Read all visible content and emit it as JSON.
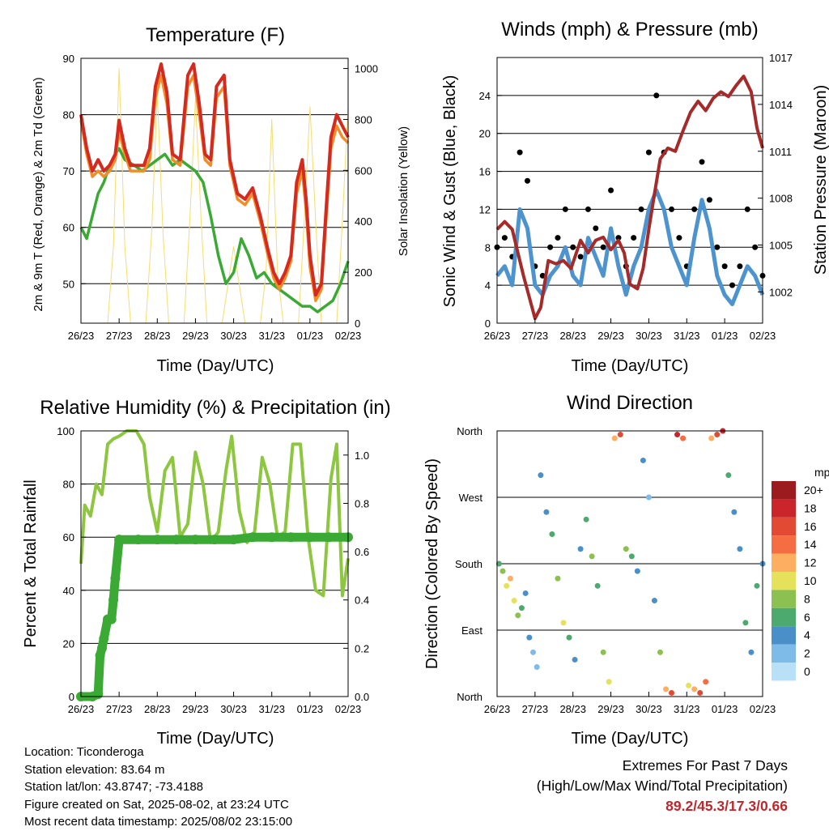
{
  "chart_data": [
    {
      "type": "line",
      "title": "Temperature (F)",
      "xlabel": "Time (Day/UTC)",
      "ylabel": "2m & 9m T (Red, Orange) & 2m Td (Green)",
      "y2label": "Solar Insolation (Yellow)",
      "xticks": [
        "26/23",
        "27/23",
        "28/23",
        "29/23",
        "30/23",
        "31/23",
        "01/23",
        "02/23"
      ],
      "ylim": [
        43,
        90
      ],
      "yticks": [
        50,
        60,
        70,
        80,
        90
      ],
      "y2lim": [
        0,
        1040
      ],
      "y2ticks": [
        0,
        200,
        400,
        600,
        800,
        1000
      ],
      "series": [
        {
          "name": "2m T",
          "color": "#d42a20",
          "x": [
            0,
            0.15,
            0.3,
            0.45,
            0.6,
            0.75,
            0.9,
            1.0,
            1.15,
            1.3,
            1.5,
            1.65,
            1.8,
            1.95,
            2.1,
            2.25,
            2.4,
            2.6,
            2.8,
            2.95,
            3.1,
            3.25,
            3.4,
            3.55,
            3.75,
            3.9,
            4.1,
            4.3,
            4.5,
            4.7,
            4.9,
            5.05,
            5.2,
            5.35,
            5.5,
            5.65,
            5.8,
            5.9,
            6.0,
            6.15,
            6.3,
            6.45,
            6.55,
            6.7,
            6.85,
            7.0
          ],
          "values": [
            80,
            74,
            70,
            72,
            70,
            71,
            73,
            79,
            74,
            71,
            71,
            71,
            74,
            85,
            89,
            84,
            73,
            72,
            87,
            89,
            82,
            73,
            72,
            85,
            87,
            72,
            66,
            65,
            67,
            62,
            56,
            52,
            50,
            52,
            55,
            68,
            72,
            65,
            55,
            48,
            50,
            66,
            76,
            80,
            78,
            76
          ]
        },
        {
          "name": "9m T",
          "color": "#f28c28",
          "x": [
            0,
            0.15,
            0.3,
            0.45,
            0.6,
            0.75,
            0.9,
            1.0,
            1.15,
            1.3,
            1.5,
            1.65,
            1.8,
            1.95,
            2.1,
            2.25,
            2.4,
            2.6,
            2.8,
            2.95,
            3.1,
            3.25,
            3.4,
            3.55,
            3.75,
            3.9,
            4.1,
            4.3,
            4.5,
            4.7,
            4.9,
            5.05,
            5.2,
            5.35,
            5.5,
            5.65,
            5.8,
            5.9,
            6.0,
            6.15,
            6.3,
            6.45,
            6.55,
            6.7,
            6.85,
            7.0
          ],
          "values": [
            79,
            73,
            69,
            70,
            69,
            70,
            72,
            77,
            73,
            70,
            70,
            70,
            72,
            83,
            87,
            82,
            72,
            71,
            85,
            87,
            80,
            72,
            71,
            83,
            85,
            71,
            65,
            64,
            66,
            61,
            55,
            51,
            49,
            51,
            54,
            66,
            70,
            63,
            53,
            47,
            49,
            64,
            74,
            78,
            76,
            75
          ]
        },
        {
          "name": "2m Td",
          "color": "#3aaa35",
          "x": [
            0,
            0.15,
            0.3,
            0.45,
            0.6,
            0.75,
            0.9,
            1.0,
            1.15,
            1.4,
            1.6,
            1.8,
            2.0,
            2.2,
            2.4,
            2.6,
            2.8,
            3.0,
            3.2,
            3.4,
            3.6,
            3.8,
            4.0,
            4.2,
            4.4,
            4.6,
            4.8,
            5.0,
            5.2,
            5.4,
            5.6,
            5.8,
            6.0,
            6.2,
            6.4,
            6.6,
            6.8,
            7.0
          ],
          "values": [
            60,
            58,
            62,
            66,
            68,
            71,
            73,
            74,
            72,
            71,
            70,
            71,
            72,
            73,
            71,
            72,
            71,
            70,
            68,
            62,
            55,
            50,
            52,
            58,
            55,
            51,
            52,
            50,
            49,
            48,
            47,
            46,
            46,
            45,
            46,
            47,
            50,
            54
          ]
        },
        {
          "name": "Solar Insolation",
          "color": "#f7dc6f",
          "x": [
            0.7,
            0.85,
            1.0,
            1.15,
            1.3,
            1.7,
            1.85,
            2.0,
            2.15,
            2.3,
            2.7,
            2.85,
            3.0,
            3.15,
            3.3,
            3.7,
            3.85,
            4.0,
            4.15,
            4.3,
            4.7,
            4.85,
            5.0,
            5.15,
            5.3,
            5.7,
            5.85,
            6.0,
            6.15,
            6.3,
            6.7,
            6.85,
            7.0
          ],
          "values": [
            0,
            300,
            1000,
            300,
            0,
            0,
            350,
            900,
            350,
            0,
            0,
            400,
            880,
            400,
            0,
            0,
            150,
            300,
            150,
            0,
            0,
            200,
            800,
            200,
            0,
            0,
            400,
            850,
            400,
            0,
            0,
            400,
            850
          ]
        }
      ]
    },
    {
      "type": "line",
      "title": "Winds (mph) & Pressure (mb)",
      "xlabel": "Time (Day/UTC)",
      "ylabel": "Sonic Wind & Gust (Blue, Black)",
      "y2label": "Station Pressure (Maroon)",
      "xticks": [
        "26/23",
        "27/23",
        "28/23",
        "29/23",
        "30/23",
        "31/23",
        "01/23",
        "02/23"
      ],
      "ylim": [
        0,
        28
      ],
      "yticks": [
        0,
        4,
        8,
        12,
        16,
        20,
        24
      ],
      "y2lim": [
        1000,
        1017
      ],
      "y2ticks": [
        1002,
        1005,
        1008,
        1011,
        1014,
        1017
      ],
      "series": [
        {
          "name": "Sonic Wind",
          "color": "#4d94cf",
          "x": [
            0,
            0.2,
            0.4,
            0.6,
            0.8,
            1.0,
            1.2,
            1.4,
            1.6,
            1.8,
            2.0,
            2.2,
            2.4,
            2.6,
            2.8,
            3.0,
            3.2,
            3.4,
            3.6,
            3.8,
            4.0,
            4.2,
            4.4,
            4.6,
            4.8,
            5.0,
            5.2,
            5.4,
            5.6,
            5.8,
            6.0,
            6.2,
            6.4,
            6.6,
            6.8,
            7.0
          ],
          "values": [
            5,
            6,
            4,
            12,
            10,
            4,
            3,
            5,
            6,
            8,
            5,
            4,
            9,
            7,
            5,
            10,
            6,
            3,
            6,
            8,
            12,
            14,
            12,
            8,
            6,
            4,
            9,
            13,
            10,
            5,
            3,
            2,
            4,
            6,
            5,
            3
          ]
        },
        {
          "name": "Gust",
          "color": "#000000",
          "x": [
            0,
            0.2,
            0.4,
            0.6,
            0.8,
            1.0,
            1.2,
            1.4,
            1.6,
            1.8,
            2.0,
            2.2,
            2.4,
            2.6,
            2.8,
            3.0,
            3.2,
            3.4,
            3.6,
            3.8,
            4.0,
            4.2,
            4.4,
            4.6,
            4.8,
            5.0,
            5.2,
            5.4,
            5.6,
            5.8,
            6.0,
            6.2,
            6.4,
            6.6,
            6.8,
            7.0
          ],
          "values": [
            8,
            9,
            7,
            18,
            15,
            6,
            5,
            8,
            9,
            12,
            8,
            7,
            12,
            10,
            8,
            14,
            9,
            6,
            9,
            12,
            18,
            24,
            18,
            12,
            9,
            6,
            12,
            17,
            13,
            8,
            6,
            4,
            6,
            12,
            8,
            5
          ]
        },
        {
          "name": "Station Pressure",
          "color": "#a52a2a",
          "x": [
            0,
            0.2,
            0.4,
            0.7,
            1.0,
            1.15,
            1.35,
            1.55,
            1.75,
            1.95,
            2.2,
            2.4,
            2.6,
            2.8,
            3.0,
            3.2,
            3.35,
            3.5,
            3.7,
            3.85,
            4.0,
            4.15,
            4.3,
            4.5,
            4.7,
            4.9,
            5.1,
            5.3,
            5.5,
            5.7,
            5.9,
            6.1,
            6.3,
            6.5,
            6.7,
            6.85,
            7.0
          ],
          "values": [
            1006,
            1006.5,
            1006,
            1003,
            1000.3,
            1001,
            1004,
            1003.8,
            1004,
            1003.5,
            1005.3,
            1004.5,
            1005.3,
            1005.5,
            1004.7,
            1005.3,
            1004.5,
            1002.5,
            1002.2,
            1003.5,
            1006,
            1008.3,
            1010.5,
            1011.2,
            1011,
            1012.3,
            1013.5,
            1014.2,
            1013.6,
            1014.4,
            1014.8,
            1014.5,
            1015.2,
            1015.8,
            1014.8,
            1012.5,
            1011.2
          ]
        }
      ]
    },
    {
      "type": "line",
      "title": "Relative Humidity (%) & Precipitation (in)",
      "xlabel": "Time (Day/UTC)",
      "ylabel": "Percent & Total Rainfall",
      "xticks": [
        "26/23",
        "27/23",
        "28/23",
        "29/23",
        "30/23",
        "31/23",
        "01/23",
        "02/23"
      ],
      "ylim": [
        0,
        100
      ],
      "yticks": [
        0,
        20,
        40,
        60,
        80,
        100
      ],
      "y2lim": [
        0,
        1.1
      ],
      "y2ticks": [
        "0.0",
        "0.2",
        "0.4",
        "0.6",
        "0.8",
        "1.0"
      ],
      "series": [
        {
          "name": "Relative Humidity",
          "color": "#8dc63f",
          "x": [
            0,
            0.1,
            0.25,
            0.4,
            0.55,
            0.7,
            0.85,
            1.0,
            1.2,
            1.45,
            1.65,
            1.8,
            2.0,
            2.2,
            2.4,
            2.6,
            2.8,
            3.0,
            3.2,
            3.4,
            3.6,
            3.8,
            3.95,
            4.15,
            4.35,
            4.55,
            4.75,
            4.95,
            5.15,
            5.35,
            5.55,
            5.75,
            5.95,
            6.15,
            6.35,
            6.55,
            6.7,
            6.85,
            7.0
          ],
          "values": [
            50,
            72,
            68,
            80,
            76,
            95,
            97,
            98,
            100,
            100,
            95,
            75,
            62,
            85,
            90,
            60,
            65,
            92,
            80,
            58,
            62,
            85,
            98,
            70,
            58,
            62,
            90,
            80,
            60,
            62,
            95,
            95,
            60,
            40,
            38,
            82,
            95,
            38,
            52
          ]
        },
        {
          "name": "Total Precipitation",
          "color": "#3aaa35",
          "x": [
            0,
            0.3,
            0.45,
            0.5,
            0.55,
            0.6,
            0.7,
            0.8,
            0.85,
            0.9,
            1.0,
            1.5,
            2.0,
            2.5,
            3.0,
            3.5,
            4.0,
            4.5,
            5.0,
            5.5,
            6.0,
            6.5,
            7.0
          ],
          "values": [
            0.0,
            0.0,
            0.01,
            0.17,
            0.2,
            0.24,
            0.32,
            0.32,
            0.4,
            0.49,
            0.65,
            0.65,
            0.65,
            0.65,
            0.65,
            0.65,
            0.65,
            0.66,
            0.66,
            0.66,
            0.66,
            0.66,
            0.66
          ]
        }
      ]
    },
    {
      "type": "scatter",
      "title": "Wind Direction",
      "xlabel": "Time (Day/UTC)",
      "ylabel": "Direction (Colored By Speed)",
      "xticks": [
        "26/23",
        "27/23",
        "28/23",
        "29/23",
        "30/23",
        "31/23",
        "01/23",
        "02/23"
      ],
      "yticks": [
        "North",
        "East",
        "South",
        "West",
        "North"
      ],
      "ylim": [
        0,
        360
      ],
      "colorbar": {
        "title": "mph",
        "labels": [
          "20+",
          "18",
          "16",
          "14",
          "12",
          "10",
          "8",
          "6",
          "4",
          "2",
          "0"
        ],
        "colors": [
          "#9b1b1e",
          "#c9252b",
          "#e34a33",
          "#f46d43",
          "#fdae61",
          "#e6e15a",
          "#8cc152",
          "#4daa6e",
          "#4a8fc7",
          "#7fbbe8",
          "#b8e0f6"
        ]
      },
      "x": [
        0.05,
        0.15,
        0.25,
        0.35,
        0.45,
        0.55,
        0.65,
        0.75,
        0.85,
        0.95,
        1.05,
        1.15,
        1.3,
        1.45,
        1.6,
        1.75,
        1.9,
        2.05,
        2.2,
        2.35,
        2.5,
        2.65,
        2.8,
        2.95,
        3.1,
        3.25,
        3.4,
        3.55,
        3.7,
        3.85,
        4.0,
        4.15,
        4.3,
        4.45,
        4.6,
        4.75,
        4.9,
        5.05,
        5.2,
        5.35,
        5.5,
        5.65,
        5.8,
        5.95,
        6.1,
        6.25,
        6.4,
        6.55,
        6.7,
        6.85,
        7.0
      ],
      "y": [
        180,
        170,
        150,
        160,
        130,
        110,
        120,
        140,
        80,
        60,
        40,
        300,
        250,
        220,
        160,
        100,
        80,
        50,
        200,
        240,
        190,
        150,
        60,
        20,
        350,
        355,
        200,
        190,
        170,
        320,
        270,
        130,
        60,
        10,
        5,
        355,
        350,
        15,
        10,
        5,
        20,
        350,
        355,
        360,
        300,
        250,
        200,
        100,
        60,
        150,
        180
      ],
      "speed": [
        6,
        8,
        10,
        12,
        10,
        8,
        6,
        4,
        4,
        2,
        2,
        4,
        4,
        6,
        8,
        10,
        6,
        4,
        4,
        6,
        8,
        6,
        8,
        10,
        12,
        16,
        8,
        6,
        4,
        4,
        2,
        4,
        8,
        12,
        16,
        18,
        14,
        10,
        12,
        16,
        14,
        12,
        16,
        18,
        6,
        4,
        4,
        6,
        4,
        6,
        4
      ]
    }
  ],
  "info": {
    "location": "Location: Ticonderoga",
    "elevation": "Station elevation: 83.64 m",
    "latlon": "Station lat/lon: 43.8747; -73.4188",
    "created": "Figure created on Sat, 2025-08-02, at 23:24 UTC",
    "recent": "Most recent data timestamp: 2025/08/02 23:15:00"
  },
  "extremes": {
    "title": "Extremes For Past 7 Days",
    "subtitle": "(High/Low/Max Wind/Total Precipitation)",
    "values": "89.2/45.3/17.3/0.66"
  }
}
